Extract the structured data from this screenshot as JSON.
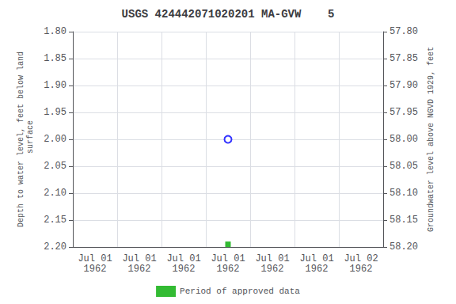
{
  "chart_data": {
    "type": "scatter",
    "title": "USGS 424442071020201 MA-GVW    5",
    "y_label": "Depth to water level, feet below land\n surface",
    "y2_label": "Groundwater level above NGVD 1929, feet",
    "categories": [
      "Jul 01\n1962",
      "Jul 01\n1962",
      "Jul 01\n1962",
      "Jul 01\n1962",
      "Jul 01\n1962",
      "Jul 01\n1962",
      "Jul 02\n1962"
    ],
    "series": [
      {
        "color": "blue",
        "marker": "open_circle",
        "values": [
          null,
          null,
          null,
          2.0,
          null,
          null,
          null
        ]
      },
      {
        "name": "Period of approved data",
        "color": "#00aa00",
        "marker": "square",
        "values": [
          null,
          null,
          null,
          2.195,
          null,
          null,
          null
        ]
      }
    ],
    "ylim": [
      2.2,
      1.8
    ],
    "yticks": [
      {
        "value": 1.8,
        "label": "1.80"
      },
      {
        "value": 1.85,
        "label": "1.85"
      },
      {
        "value": 1.9,
        "label": "1.90"
      },
      {
        "value": 1.95,
        "label": "1.95"
      },
      {
        "value": 2.0,
        "label": "2.00"
      },
      {
        "value": 2.05,
        "label": "2.05"
      },
      {
        "value": 2.1,
        "label": "2.10"
      },
      {
        "value": 2.15,
        "label": "2.15"
      },
      {
        "value": 2.2,
        "label": "2.20"
      }
    ],
    "y2lim": [
      58.2,
      57.8
    ],
    "y2ticks": [
      {
        "value": 57.8,
        "label": "57.80"
      },
      {
        "value": 57.85,
        "label": "57.85"
      },
      {
        "value": 57.9,
        "label": "57.90"
      },
      {
        "value": 57.95,
        "label": "57.95"
      },
      {
        "value": 58.0,
        "label": "58.00"
      },
      {
        "value": 58.05,
        "label": "58.05"
      },
      {
        "value": 58.1,
        "label": "58.10"
      },
      {
        "value": 58.15,
        "label": "58.15"
      },
      {
        "value": 58.2,
        "label": "58.20"
      }
    ],
    "grid": true,
    "legend": "bottom"
  }
}
